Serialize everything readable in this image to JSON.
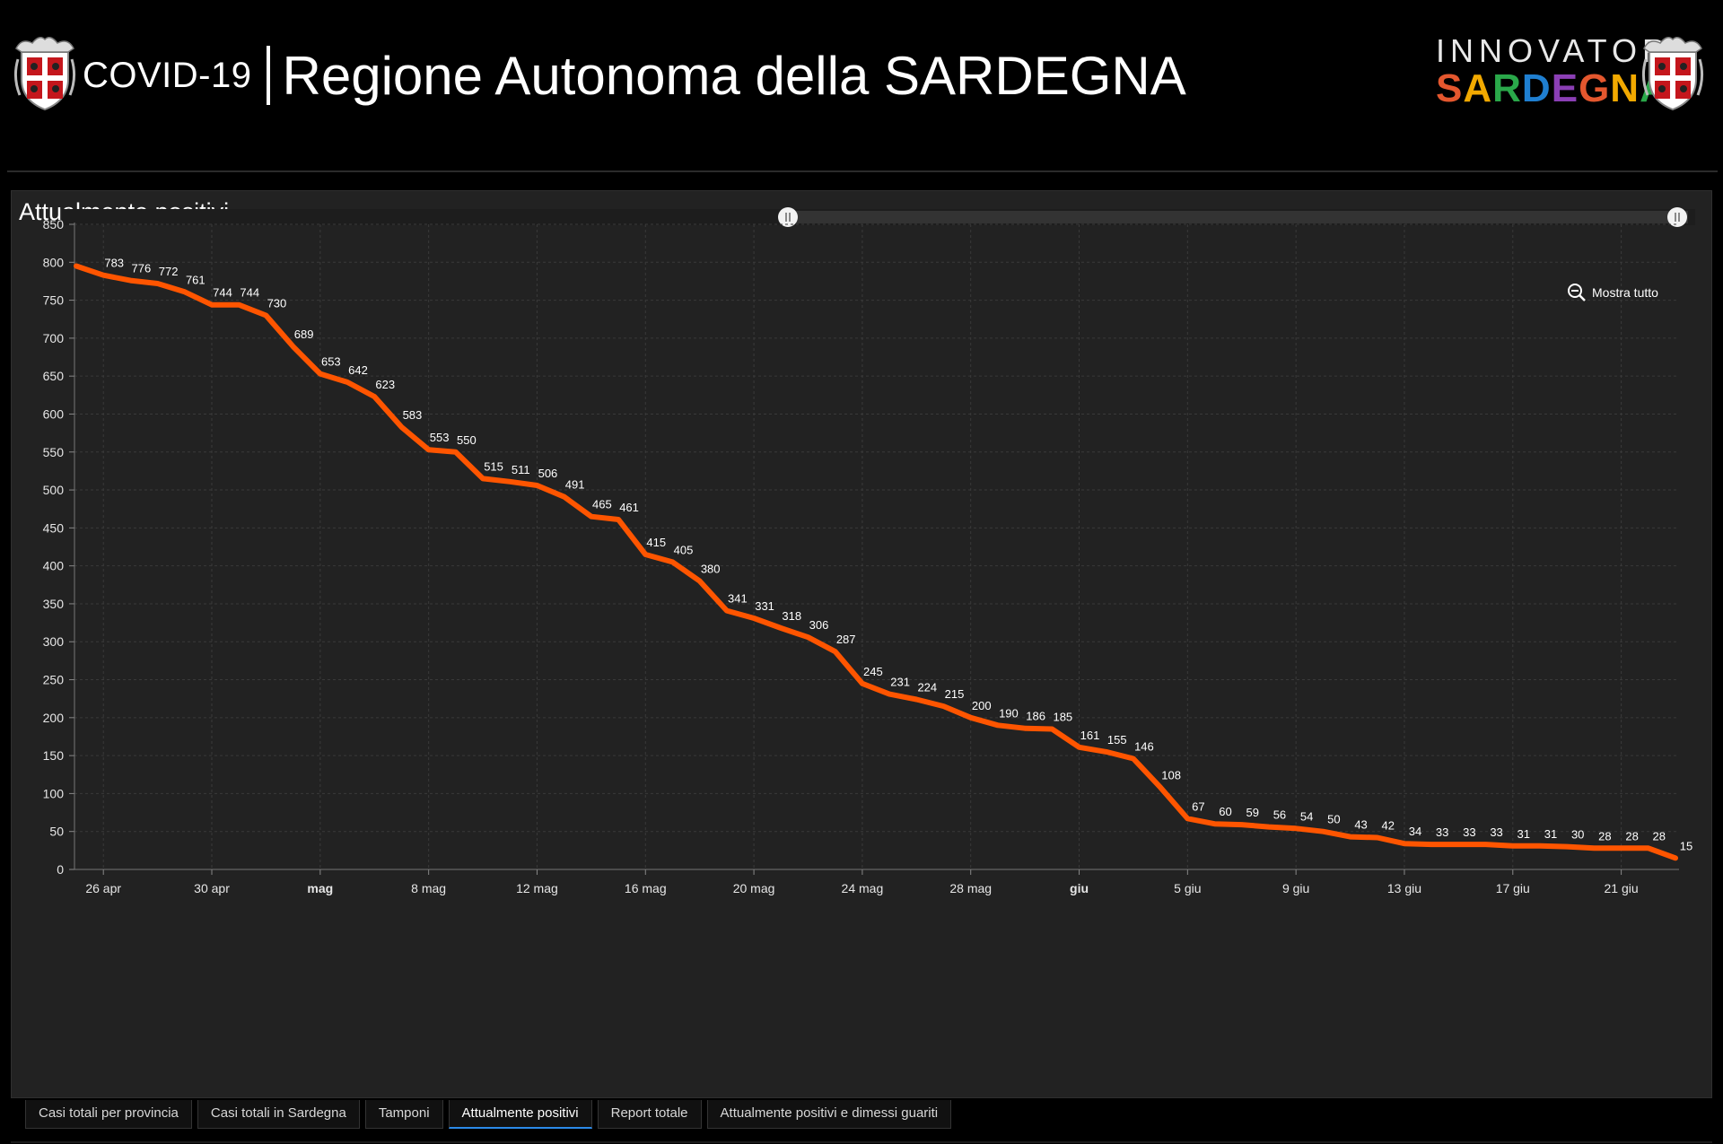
{
  "header": {
    "title_prefix": "COVID-19",
    "title_main": "Regione Autonoma della SARDEGNA",
    "brand_line1": "INNOVATORI",
    "brand_line2": "SARDEGNA",
    "brand_colors": [
      "#e4572e",
      "#f2a900",
      "#2aa84a",
      "#1f7fd1",
      "#8b3fb5",
      "#e4572e",
      "#f2a900",
      "#2aa84a"
    ]
  },
  "panel": {
    "title": "Attualmente positivi",
    "zoom_label": "Mostra tutto"
  },
  "chart_data": {
    "type": "line",
    "title": "Attualmente positivi",
    "xlabel": "",
    "ylabel": "",
    "ylim": [
      0,
      850
    ],
    "yticks": [
      0,
      50,
      100,
      150,
      200,
      250,
      300,
      350,
      400,
      450,
      500,
      550,
      600,
      650,
      700,
      750,
      800,
      850
    ],
    "x_start": "2020-04-25",
    "x_tick_labels": [
      "26 apr",
      "30 apr",
      "mag",
      "8 mag",
      "12 mag",
      "16 mag",
      "20 mag",
      "24 mag",
      "28 mag",
      "giu",
      "5 giu",
      "9 giu",
      "13 giu",
      "17 giu",
      "21 giu"
    ],
    "x_tick_dates": [
      "2020-04-26",
      "2020-04-30",
      "2020-05-04",
      "2020-05-08",
      "2020-05-12",
      "2020-05-16",
      "2020-05-20",
      "2020-05-24",
      "2020-05-28",
      "2020-06-01",
      "2020-06-05",
      "2020-06-09",
      "2020-06-13",
      "2020-06-17",
      "2020-06-21"
    ],
    "x_bold_ticks": [
      "mag",
      "giu"
    ],
    "grid": true,
    "line_color": "#ff5500",
    "series": [
      {
        "values": [
          795,
          783,
          776,
          772,
          761,
          744,
          744,
          730,
          689,
          653,
          642,
          623,
          583,
          553,
          550,
          515,
          511,
          506,
          491,
          465,
          461,
          415,
          405,
          380,
          341,
          331,
          318,
          306,
          287,
          245,
          231,
          224,
          215,
          200,
          190,
          186,
          185,
          161,
          155,
          146,
          108,
          67,
          60,
          59,
          56,
          54,
          50,
          43,
          42,
          34,
          33,
          33,
          33,
          31,
          31,
          30,
          28,
          28,
          28,
          15
        ],
        "labels": [
          "",
          "783",
          "776",
          "772",
          "761",
          "744",
          "744",
          "730",
          "689",
          "653",
          "642",
          "623",
          "583",
          "553",
          "550",
          "515",
          "511",
          "506",
          "491",
          "465",
          "461",
          "415",
          "405",
          "380",
          "341",
          "331",
          "318",
          "306",
          "287",
          "245",
          "231",
          "224",
          "215",
          "200",
          "190",
          "186",
          "185",
          "161",
          "155",
          "146",
          "108",
          "67",
          "60",
          "59",
          "56",
          "54",
          "50",
          "43",
          "42",
          "34",
          "33",
          "33",
          "33",
          "31",
          "31",
          "30",
          "28",
          "28",
          "28",
          "15"
        ]
      }
    ]
  },
  "tabs": [
    {
      "label": "Casi totali per provincia",
      "active": false
    },
    {
      "label": "Casi totali in Sardegna",
      "active": false
    },
    {
      "label": "Tamponi",
      "active": false
    },
    {
      "label": "Attualmente positivi",
      "active": true
    },
    {
      "label": "Report totale",
      "active": false
    },
    {
      "label": "Attualmente positivi e dimessi guariti",
      "active": false
    }
  ]
}
